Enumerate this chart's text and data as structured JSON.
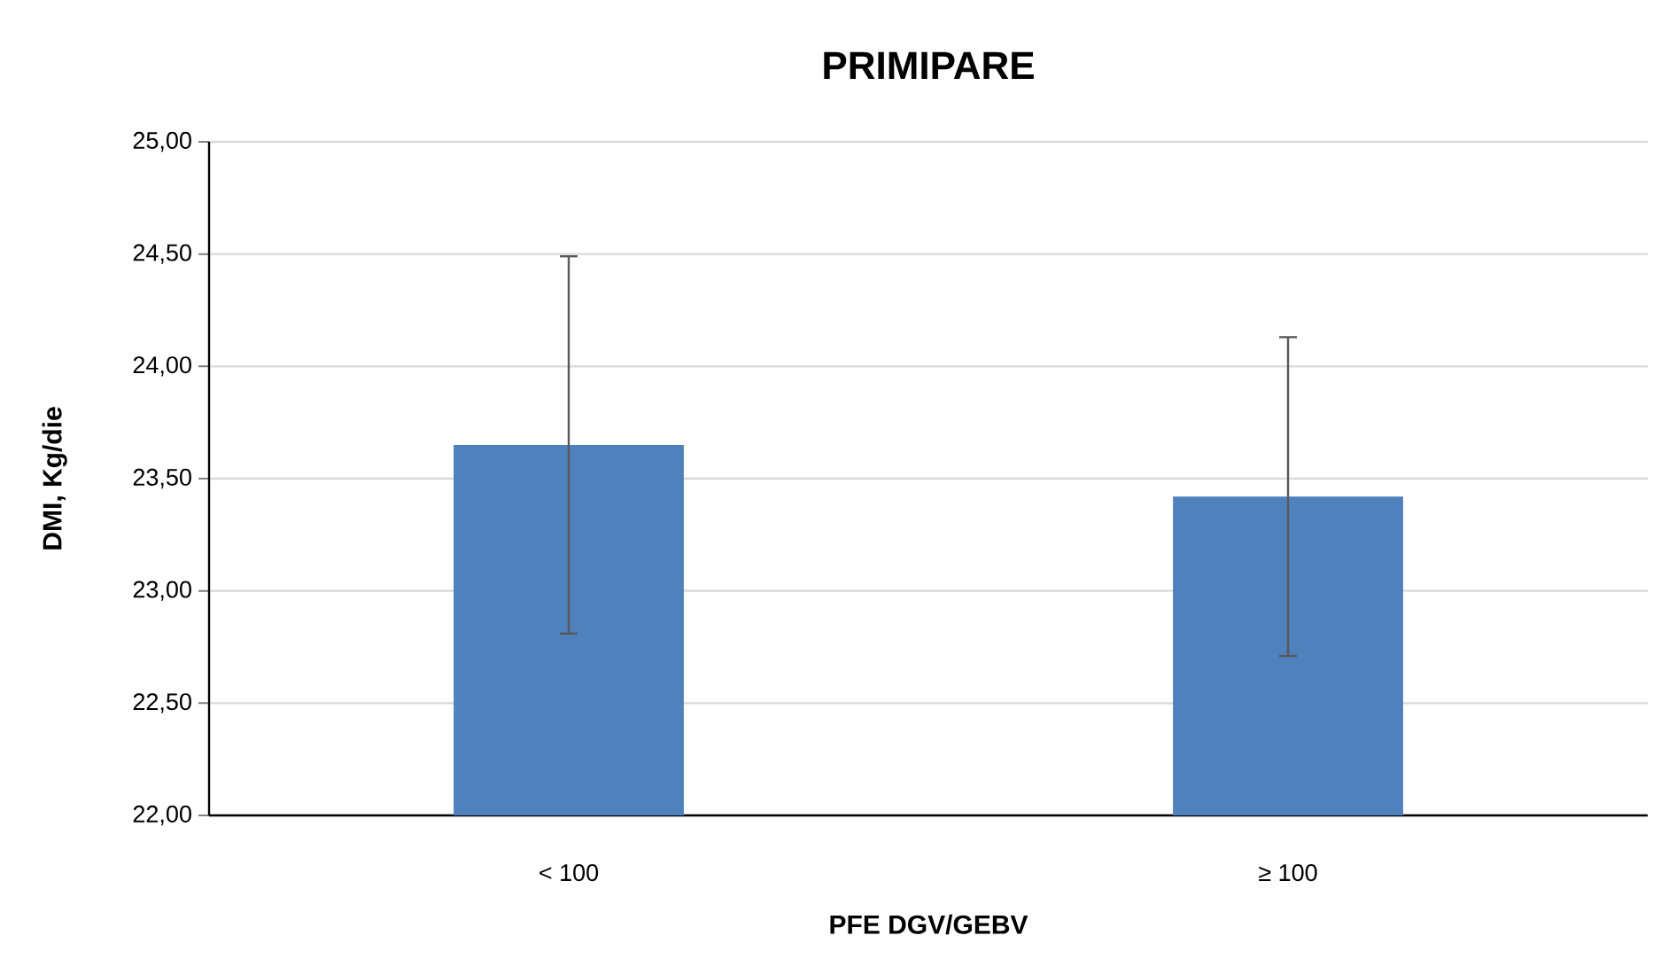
{
  "chart_data": {
    "type": "bar",
    "title": "PRIMIPARE",
    "xlabel": "PFE DGV/GEBV",
    "ylabel": "DMI, Kg/die",
    "categories": [
      "< 100",
      "≥ 100"
    ],
    "values": [
      23.65,
      23.42
    ],
    "errors": [
      0.84,
      0.71
    ],
    "color": "#4f81bd",
    "ylim": [
      22,
      25
    ],
    "yticks": [
      {
        "value": 22,
        "label": "22,00"
      },
      {
        "value": 22.5,
        "label": "22,50"
      },
      {
        "value": 23,
        "label": "23,00"
      },
      {
        "value": 23.5,
        "label": "23,50"
      },
      {
        "value": 24,
        "label": "24,00"
      },
      {
        "value": 24.5,
        "label": "24,50"
      },
      {
        "value": 25,
        "label": "25,00"
      }
    ],
    "grid": "y"
  }
}
